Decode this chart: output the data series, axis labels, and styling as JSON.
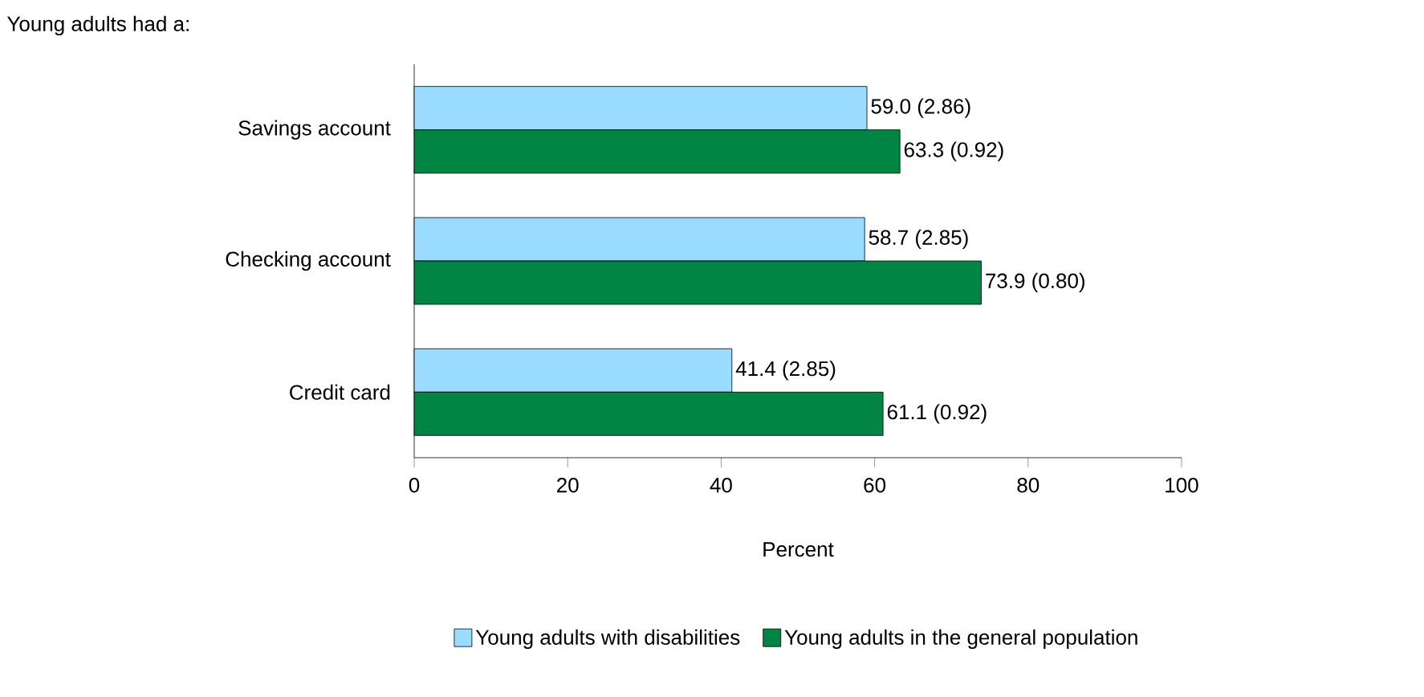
{
  "chart_data": {
    "type": "bar",
    "orientation": "horizontal",
    "title": "Young adults had a:",
    "xlabel": "Percent",
    "categories": [
      "Savings account",
      "Checking account",
      "Credit card"
    ],
    "series": [
      {
        "name": "Young adults with disabilities",
        "color": "#99dcff",
        "values": [
          59.0,
          58.7,
          41.4
        ],
        "value_labels": [
          "59.0 (2.86)",
          "58.7 (2.85)",
          "41.4 (2.85)"
        ]
      },
      {
        "name": "Young adults in the general population",
        "color": "#008542",
        "values": [
          63.3,
          73.9,
          61.1
        ],
        "value_labels": [
          "63.3 (0.92)",
          "73.9 (0.80)",
          "61.1 (0.92)"
        ]
      }
    ],
    "xlim": [
      0,
      100
    ],
    "xticks": [
      0,
      20,
      40,
      60,
      80,
      100
    ],
    "legend": "bottom"
  }
}
